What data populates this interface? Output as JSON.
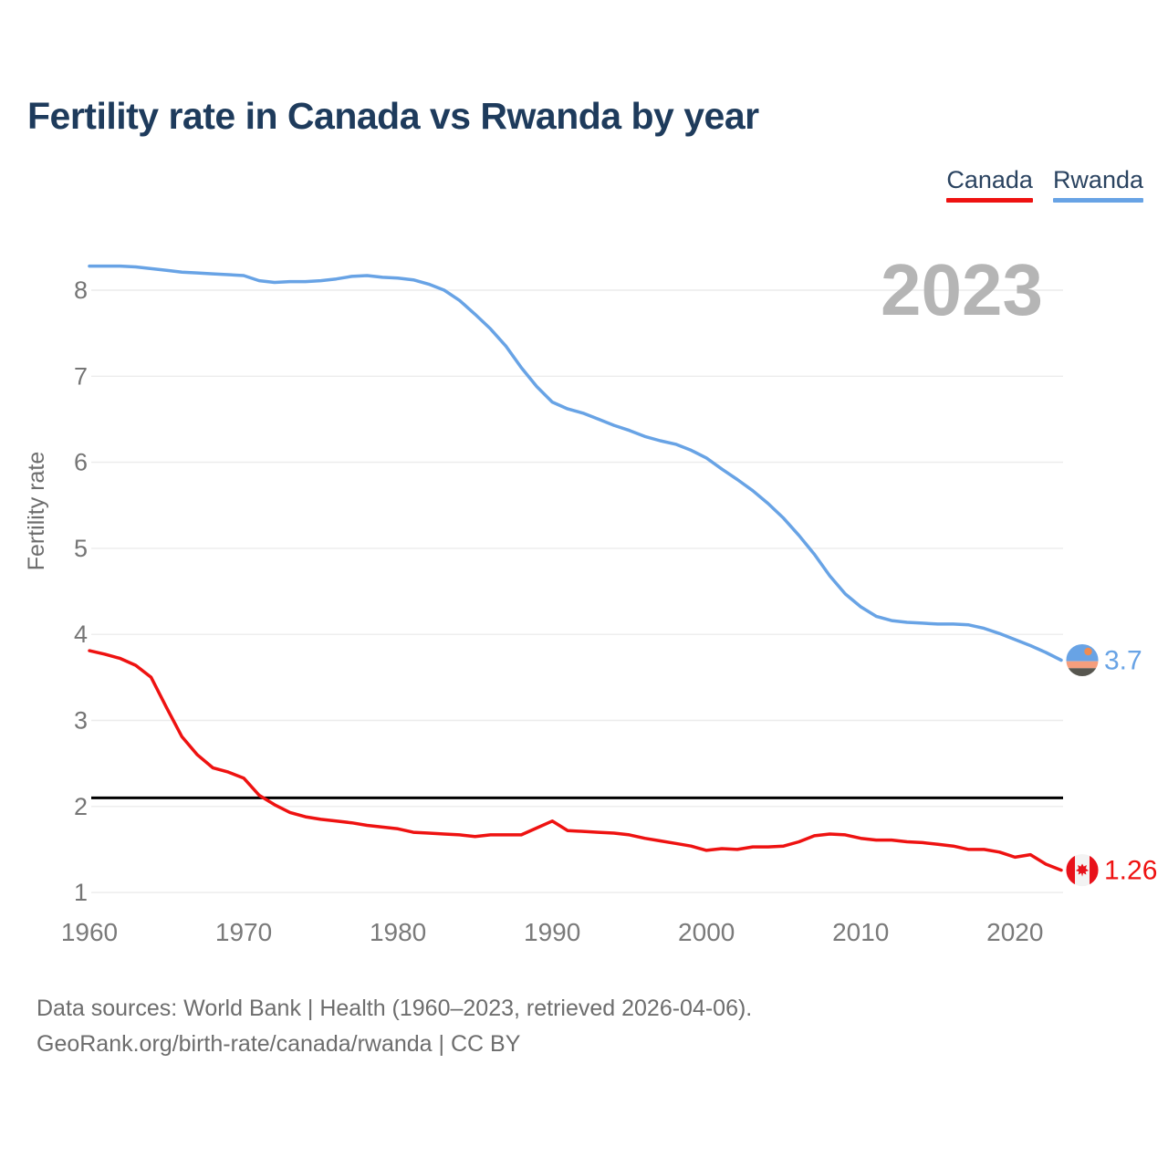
{
  "page": {
    "title": "Fertility rate in Canada vs Rwanda by year"
  },
  "legend": [
    {
      "label": "Canada",
      "color": "#ee1211"
    },
    {
      "label": "Rwanda",
      "color": "#68a3e5"
    }
  ],
  "watermark": "2023",
  "footer": {
    "line1": "Data sources: World Bank | Health (1960–2023, retrieved 2026-04-06).",
    "line2": "GeoRank.org/birth-rate/canada/rwanda | CC BY"
  },
  "chart_data": {
    "type": "line",
    "title": "Fertility rate in Canada vs Rwanda by year",
    "ylabel": "Fertility rate",
    "xlabel": "",
    "grid": "horizontal",
    "legend_position": "top-right",
    "xlim": [
      1960,
      2023
    ],
    "ylim": [
      1,
      8.45
    ],
    "yticks": [
      1,
      2,
      3,
      4,
      5,
      6,
      7,
      8
    ],
    "xticks": [
      1960,
      1970,
      1980,
      1990,
      2000,
      2010,
      2020
    ],
    "reference_line": {
      "value": 2.1,
      "color": "#000000"
    },
    "x": [
      1960,
      1961,
      1962,
      1963,
      1964,
      1965,
      1966,
      1967,
      1968,
      1969,
      1970,
      1971,
      1972,
      1973,
      1974,
      1975,
      1976,
      1977,
      1978,
      1979,
      1980,
      1981,
      1982,
      1983,
      1984,
      1985,
      1986,
      1987,
      1988,
      1989,
      1990,
      1991,
      1992,
      1993,
      1994,
      1995,
      1996,
      1997,
      1998,
      1999,
      2000,
      2001,
      2002,
      2003,
      2004,
      2005,
      2006,
      2007,
      2008,
      2009,
      2010,
      2011,
      2012,
      2013,
      2014,
      2015,
      2016,
      2017,
      2018,
      2019,
      2020,
      2021,
      2022,
      2023
    ],
    "series": [
      {
        "name": "Canada",
        "color": "#ee1211",
        "end_label": "1.26",
        "flag": "canada",
        "values": [
          3.81,
          3.77,
          3.72,
          3.64,
          3.5,
          3.15,
          2.81,
          2.6,
          2.45,
          2.4,
          2.33,
          2.13,
          2.02,
          1.93,
          1.88,
          1.85,
          1.83,
          1.81,
          1.78,
          1.76,
          1.74,
          1.7,
          1.69,
          1.68,
          1.67,
          1.65,
          1.67,
          1.67,
          1.67,
          1.75,
          1.83,
          1.72,
          1.71,
          1.7,
          1.69,
          1.67,
          1.63,
          1.6,
          1.57,
          1.54,
          1.49,
          1.51,
          1.5,
          1.53,
          1.53,
          1.54,
          1.59,
          1.66,
          1.68,
          1.67,
          1.63,
          1.61,
          1.61,
          1.59,
          1.58,
          1.56,
          1.54,
          1.5,
          1.5,
          1.47,
          1.41,
          1.44,
          1.33,
          1.26
        ]
      },
      {
        "name": "Rwanda",
        "color": "#68a3e5",
        "end_label": "3.7",
        "flag": "rwanda",
        "values": [
          8.28,
          8.28,
          8.28,
          8.27,
          8.25,
          8.23,
          8.21,
          8.2,
          8.19,
          8.18,
          8.17,
          8.11,
          8.09,
          8.1,
          8.1,
          8.11,
          8.13,
          8.16,
          8.17,
          8.15,
          8.14,
          8.12,
          8.07,
          8.0,
          7.88,
          7.72,
          7.55,
          7.35,
          7.1,
          6.88,
          6.7,
          6.62,
          6.57,
          6.5,
          6.43,
          6.37,
          6.3,
          6.25,
          6.21,
          6.14,
          6.05,
          5.92,
          5.8,
          5.67,
          5.52,
          5.35,
          5.15,
          4.93,
          4.68,
          4.47,
          4.32,
          4.21,
          4.16,
          4.14,
          4.13,
          4.12,
          4.12,
          4.11,
          4.07,
          4.01,
          3.94,
          3.87,
          3.79,
          3.7
        ]
      }
    ]
  }
}
